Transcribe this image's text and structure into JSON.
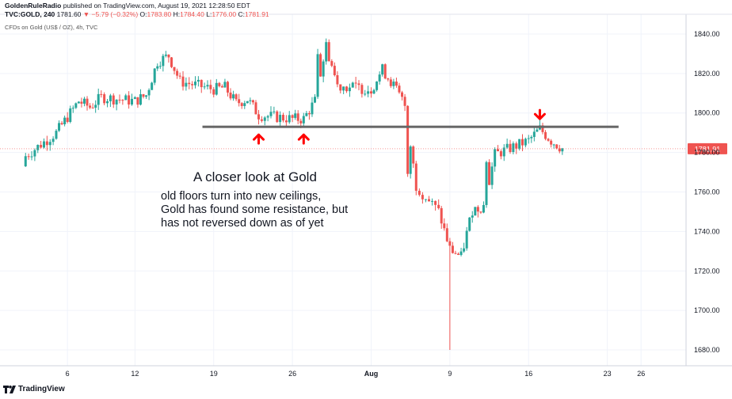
{
  "header": {
    "author": "GoldenRuleRadio",
    "published": "published on TradingView.com, August 19, 2021 12:28:50 EDT",
    "symbol": "TVC:GOLD, 240",
    "last": "1781.60",
    "change": "▼ −5.79 (−0.32%)",
    "ohlc": [
      {
        "k": "O:",
        "v": "1783.80"
      },
      {
        "k": "H:",
        "v": "1784.40"
      },
      {
        "k": "L:",
        "v": "1776.00"
      },
      {
        "k": "C:",
        "v": "1781.91"
      }
    ],
    "instrument": "CFDs on Gold (US$ / OZ), 4h, TVC"
  },
  "annotation": {
    "title": "A closer look at Gold",
    "lines": [
      "old floors turn into new ceilings,",
      "Gold has found some resistance, but",
      "has not reversed down as of yet"
    ]
  },
  "footer": {
    "brand": "TradingView"
  },
  "colors": {
    "up": "#26a69a",
    "down": "#ef5350",
    "line": "#666666",
    "arrow": "#ff0000",
    "price_tag": "#ef5350"
  },
  "chart_data": {
    "type": "candlestick",
    "y_range": [
      1672,
      1850
    ],
    "y_ticks": [
      1680,
      1700,
      1720,
      1740,
      1760,
      1780,
      1800,
      1820,
      1840
    ],
    "y_tick_labels": [
      "1680.00",
      "1700.00",
      "1720.00",
      "1740.00",
      "1760.00",
      "1780.00",
      "1800.00",
      "1820.00",
      "1840.00"
    ],
    "x_ticks": [
      {
        "date": "2021-07-06",
        "label": "6"
      },
      {
        "date": "2021-07-12",
        "label": "12"
      },
      {
        "date": "2021-07-19",
        "label": "19"
      },
      {
        "date": "2021-07-26",
        "label": "26"
      },
      {
        "date": "2021-08-02",
        "label": "Aug"
      },
      {
        "date": "2021-08-09",
        "label": "9"
      },
      {
        "date": "2021-08-16",
        "label": "16"
      },
      {
        "date": "2021-08-23",
        "label": "23"
      },
      {
        "date": "2021-08-26",
        "label": "26"
      }
    ],
    "last_price": 1781.91,
    "last_price_label": "1781.91",
    "resistance_level": 1793,
    "resistance_from": "2021-07-18",
    "resistance_to": "2021-08-24",
    "arrows": [
      {
        "date": "2021-07-23",
        "price": 1790,
        "dir": "up"
      },
      {
        "date": "2021-07-27",
        "price": 1790,
        "dir": "up"
      },
      {
        "date": "2021-08-17",
        "price": 1796,
        "dir": "down"
      }
    ],
    "closes": [
      [
        "2021-07-02",
        1777
      ],
      [
        "2021-07-05",
        1790
      ],
      [
        "2021-07-06",
        1798
      ],
      [
        "2021-07-07",
        1806
      ],
      [
        "2021-07-08",
        1803
      ],
      [
        "2021-07-09",
        1808
      ],
      [
        "2021-07-12",
        1806
      ],
      [
        "2021-07-13",
        1809
      ],
      [
        "2021-07-14",
        1826
      ],
      [
        "2021-07-15",
        1829
      ],
      [
        "2021-07-16",
        1816
      ],
      [
        "2021-07-19",
        1812
      ],
      [
        "2021-07-20",
        1813
      ],
      [
        "2021-07-21",
        1805
      ],
      [
        "2021-07-22",
        1807
      ],
      [
        "2021-07-23",
        1799
      ],
      [
        "2021-07-26",
        1797
      ],
      [
        "2021-07-27",
        1797
      ],
      [
        "2021-07-28",
        1806
      ],
      [
        "2021-07-29",
        1834
      ],
      [
        "2021-07-30",
        1814
      ],
      [
        "2021-08-02",
        1812
      ],
      [
        "2021-08-03",
        1822
      ],
      [
        "2021-08-04",
        1814
      ],
      [
        "2021-08-05",
        1804
      ],
      [
        "2021-08-06",
        1763
      ],
      [
        "2021-08-08",
        1750
      ],
      [
        "2021-08-09",
        1731
      ],
      [
        "2021-08-10",
        1727
      ],
      [
        "2021-08-11",
        1751
      ],
      [
        "2021-08-12",
        1753
      ],
      [
        "2021-08-13",
        1779
      ],
      [
        "2021-08-16",
        1786
      ],
      [
        "2021-08-17",
        1792
      ],
      [
        "2021-08-18",
        1786
      ],
      [
        "2021-08-19",
        1782
      ]
    ]
  }
}
